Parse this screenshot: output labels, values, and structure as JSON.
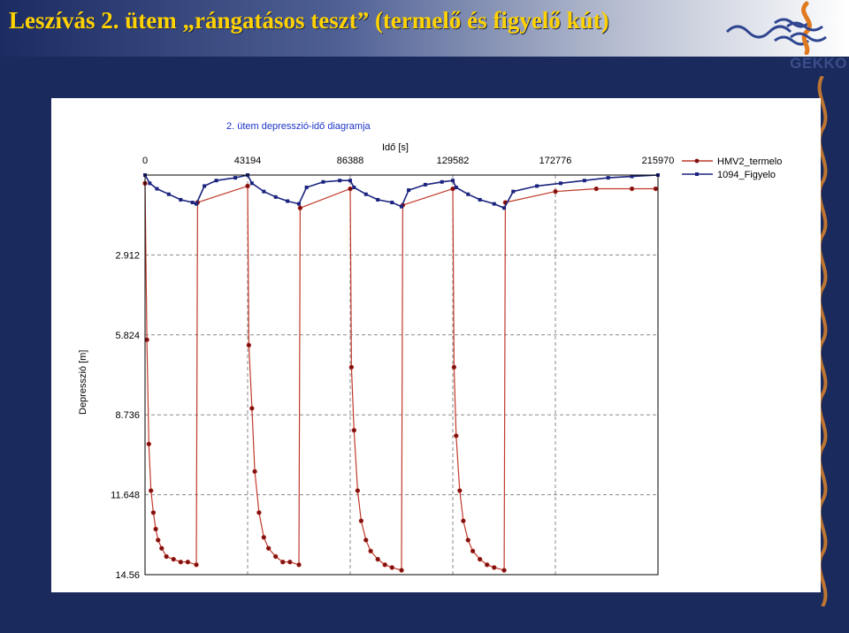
{
  "slide": {
    "title": "Leszívás 2. ütem „rángatásos teszt” (termelő és figyelő kút)",
    "logo_text": "GEKKO",
    "background_color": "#1a2a5c",
    "title_color": "#ffd200"
  },
  "chart_data": {
    "type": "scatter",
    "title": "2. ütem depresszió-idő diagramja",
    "xlabel": "Idő [s]",
    "ylabel": "Depresszió [m]",
    "xlim": [
      0,
      215970
    ],
    "ylim": [
      0,
      14.56
    ],
    "y_inverted": true,
    "x_axis_position": "top",
    "x_ticks": [
      "0",
      "43194",
      "86388",
      "129582",
      "172776",
      "215970"
    ],
    "y_ticks": [
      "2.912",
      "5.824",
      "8.736",
      "11.648",
      "14.56"
    ],
    "grid": true,
    "legend_position": "right",
    "series": [
      {
        "name": "HMV2_termelo",
        "color": "#c0392b",
        "marker_color": "#7a1010",
        "x": [
          0,
          800,
          1600,
          2500,
          3500,
          4500,
          5500,
          7000,
          9000,
          12000,
          15000,
          18000,
          21600,
          22100,
          43200,
          43700,
          45000,
          46200,
          48000,
          50000,
          52000,
          55000,
          58000,
          61000,
          64800,
          65300,
          86400,
          86900,
          88000,
          89500,
          91000,
          93000,
          95000,
          98000,
          101000,
          104000,
          108000,
          108500,
          129600,
          130100,
          131000,
          132500,
          134000,
          136000,
          138000,
          141000,
          144000,
          147000,
          151200,
          151700,
          172800,
          190000,
          205000,
          215000
        ],
        "y": [
          0.3,
          6.0,
          9.8,
          11.5,
          12.3,
          12.9,
          13.3,
          13.6,
          13.9,
          14.0,
          14.1,
          14.1,
          14.2,
          1.0,
          0.4,
          6.2,
          8.5,
          10.8,
          12.3,
          13.2,
          13.6,
          13.9,
          14.1,
          14.1,
          14.2,
          1.2,
          0.5,
          7.0,
          9.3,
          11.5,
          12.6,
          13.3,
          13.7,
          14.0,
          14.2,
          14.3,
          14.4,
          1.1,
          0.5,
          7.0,
          9.5,
          11.5,
          12.6,
          13.3,
          13.7,
          14.0,
          14.2,
          14.3,
          14.4,
          1.0,
          0.6,
          0.5,
          0.5,
          0.5
        ]
      },
      {
        "name": "1094_Figyelo",
        "color": "#1a237e",
        "marker_color": "#1a237e",
        "x": [
          0,
          2000,
          5000,
          10000,
          15000,
          20000,
          21600,
          25000,
          30000,
          38000,
          43200,
          45000,
          50000,
          55000,
          60000,
          64800,
          68000,
          75000,
          82000,
          86400,
          88000,
          93000,
          98000,
          104000,
          108000,
          111000,
          118000,
          125000,
          129600,
          131000,
          136000,
          141000,
          147000,
          151200,
          155000,
          165000,
          175000,
          185000,
          195000,
          205000,
          215970
        ],
        "y": [
          0.0,
          0.3,
          0.5,
          0.7,
          0.9,
          1.0,
          1.05,
          0.4,
          0.2,
          0.1,
          0.0,
          0.3,
          0.6,
          0.8,
          0.95,
          1.05,
          0.45,
          0.25,
          0.2,
          0.2,
          0.45,
          0.7,
          0.9,
          1.0,
          1.15,
          0.55,
          0.35,
          0.25,
          0.2,
          0.45,
          0.7,
          0.9,
          1.05,
          1.2,
          0.6,
          0.4,
          0.3,
          0.2,
          0.1,
          0.05,
          0.0
        ]
      }
    ]
  }
}
